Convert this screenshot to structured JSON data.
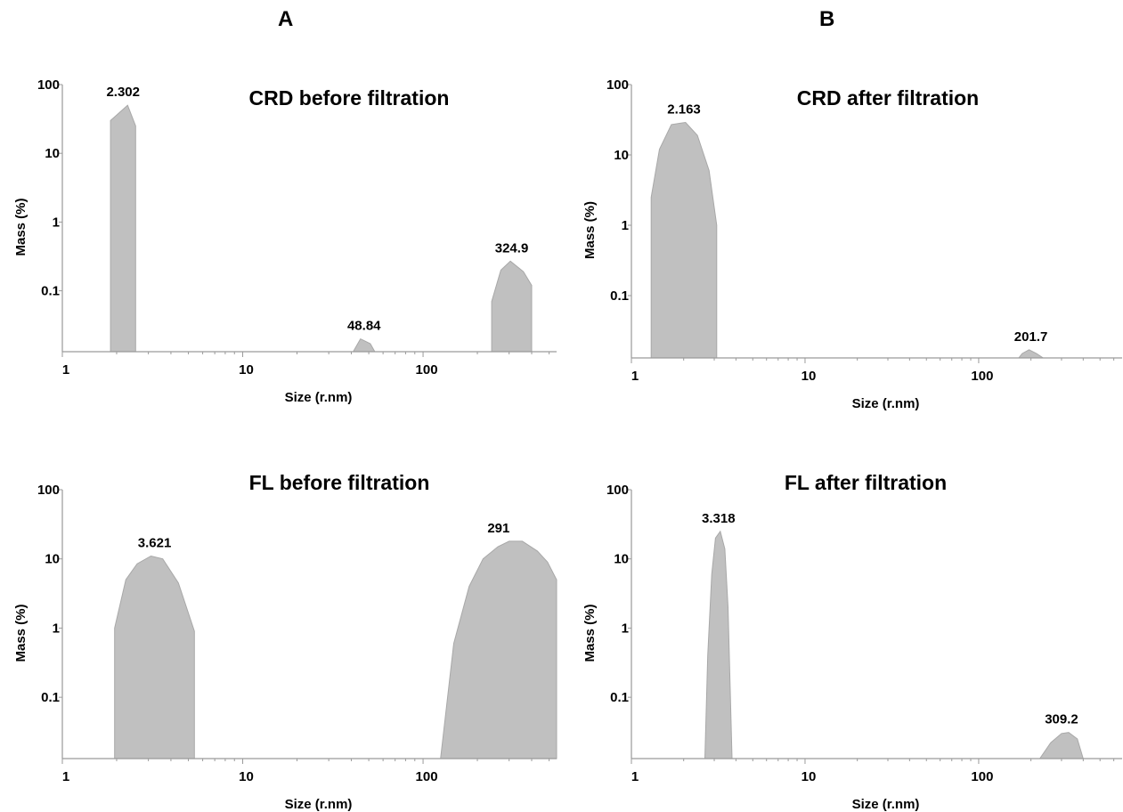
{
  "column_labels": [
    "A",
    "B"
  ],
  "chart_data": [
    {
      "id": "A-top",
      "type": "area",
      "title": "CRD before filtration",
      "xlabel": "Size (r.nm)",
      "ylabel": "Mass (%)",
      "xscale": "log",
      "yscale": "log",
      "xlim": [
        1,
        550
      ],
      "ylim": [
        0.013,
        100
      ],
      "xticks": [
        "1",
        "10",
        "100"
      ],
      "yticks": [
        "100",
        "10",
        "1",
        "0.1"
      ],
      "peaks": [
        {
          "label": "2.302",
          "x": [
            1.85,
            1.85,
            2.3,
            2.55,
            2.55
          ],
          "y": [
            0.013,
            30,
            50,
            25,
            0.013
          ]
        },
        {
          "label": "48.84",
          "x": [
            41,
            45,
            51,
            54
          ],
          "y": [
            0.013,
            0.02,
            0.017,
            0.013
          ]
        },
        {
          "label": "324.9",
          "x": [
            240,
            240,
            270,
            305,
            360,
            400,
            400
          ],
          "y": [
            0.013,
            0.07,
            0.2,
            0.27,
            0.19,
            0.12,
            0.013
          ]
        }
      ]
    },
    {
      "id": "B-top",
      "type": "area",
      "title": "CRD after filtration",
      "xlabel": "Size (r.nm)",
      "ylabel": "Mass (%)",
      "xscale": "log",
      "yscale": "log",
      "xlim": [
        1,
        670
      ],
      "ylim": [
        0.013,
        100
      ],
      "xticks": [
        "1",
        "10",
        "100"
      ],
      "yticks": [
        "100",
        "10",
        "1",
        "0.1"
      ],
      "peaks": [
        {
          "label": "2.163",
          "x": [
            1.3,
            1.3,
            1.45,
            1.7,
            2.05,
            2.4,
            2.8,
            3.1,
            3.1
          ],
          "y": [
            0.013,
            2.5,
            12,
            27,
            29,
            19,
            6,
            1,
            0.013
          ]
        },
        {
          "label": "201.7",
          "x": [
            170,
            178,
            195,
            215,
            235
          ],
          "y": [
            0.013,
            0.015,
            0.017,
            0.015,
            0.013
          ]
        }
      ]
    },
    {
      "id": "A-bottom",
      "type": "area",
      "title": "FL before filtration",
      "xlabel": "Size (r.nm)",
      "ylabel": "Mass (%)",
      "xscale": "log",
      "yscale": "log",
      "xlim": [
        1,
        550
      ],
      "ylim": [
        0.013,
        100
      ],
      "xticks": [
        "1",
        "10",
        "100"
      ],
      "yticks": [
        "100",
        "10",
        "1",
        "0.1"
      ],
      "peaks": [
        {
          "label": "3.621",
          "x": [
            1.95,
            1.95,
            2.25,
            2.6,
            3.1,
            3.6,
            4.4,
            5.4,
            5.4
          ],
          "y": [
            0.013,
            1,
            5,
            8.5,
            11,
            10,
            4.5,
            0.9,
            0.013
          ]
        },
        {
          "label": "291",
          "x": [
            125,
            148,
            180,
            215,
            260,
            300,
            355,
            430,
            490,
            550,
            550
          ],
          "y": [
            0.013,
            0.6,
            4,
            10,
            15,
            18,
            18,
            13,
            9,
            5,
            0.013
          ]
        }
      ]
    },
    {
      "id": "B-bottom",
      "type": "area",
      "title": "FL after filtration",
      "xlabel": "Size (r.nm)",
      "ylabel": "Mass (%)",
      "xscale": "log",
      "yscale": "log",
      "xlim": [
        1,
        670
      ],
      "ylim": [
        0.013,
        100
      ],
      "xticks": [
        "1",
        "10",
        "100"
      ],
      "yticks": [
        "100",
        "10",
        "1",
        "0.1"
      ],
      "peaks": [
        {
          "label": "3.318",
          "x": [
            2.65,
            2.75,
            2.9,
            3.05,
            3.25,
            3.45,
            3.6,
            3.8
          ],
          "y": [
            0.013,
            0.4,
            6,
            20,
            25,
            14,
            2,
            0.013
          ]
        },
        {
          "label": "309.2",
          "x": [
            225,
            260,
            300,
            330,
            370,
            400
          ],
          "y": [
            0.013,
            0.022,
            0.03,
            0.031,
            0.025,
            0.013
          ]
        }
      ]
    }
  ]
}
